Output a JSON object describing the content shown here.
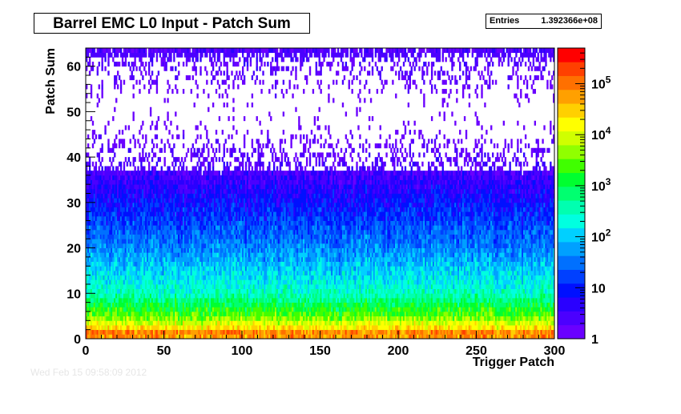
{
  "title": "Barrel EMC L0 Input - Patch Sum",
  "stats": {
    "label": "Entries",
    "value": "1.392366e+08"
  },
  "footer_stamp": "Wed Feb 15 09:58:09 2012",
  "chart_data": {
    "type": "heatmap",
    "title": "Barrel EMC L0 Input - Patch Sum",
    "xlabel": "Trigger Patch",
    "ylabel": "Patch Sum",
    "xlim": [
      0,
      300
    ],
    "ylim": [
      0,
      64
    ],
    "x_ticks": [
      0,
      50,
      100,
      150,
      200,
      250,
      300
    ],
    "y_ticks": [
      0,
      10,
      20,
      30,
      40,
      50,
      60
    ],
    "z_scale": "log",
    "zlim": [
      1,
      500000
    ],
    "z_ticks": [
      {
        "value": 1,
        "label": "1"
      },
      {
        "value": 10,
        "label": "10"
      },
      {
        "value": 100,
        "label": "10",
        "exp": "2"
      },
      {
        "value": 1000,
        "label": "10",
        "exp": "3"
      },
      {
        "value": 10000,
        "label": "10",
        "exp": "4"
      },
      {
        "value": 100000,
        "label": "10",
        "exp": "5"
      }
    ],
    "n_bins_x": 300,
    "n_bins_y": 64,
    "profile": {
      "description_points": [
        {
          "patch_sum": 0,
          "counts": 20000
        },
        {
          "patch_sum": 1,
          "counts": 200000
        },
        {
          "patch_sum": 2,
          "counts": 30000
        },
        {
          "patch_sum": 5,
          "counts": 3000
        },
        {
          "patch_sum": 10,
          "counts": 300
        },
        {
          "patch_sum": 20,
          "counts": 40
        },
        {
          "patch_sum": 30,
          "counts": 8
        },
        {
          "patch_sum": 40,
          "counts": 1.5
        },
        {
          "patch_sum": 50,
          "counts": 0.4
        },
        {
          "patch_sum": 63,
          "counts": 2
        }
      ]
    },
    "palette": [
      "#6a00ff",
      "#4b00ff",
      "#2a00ff",
      "#0010ff",
      "#0040ff",
      "#0070ff",
      "#00a0ff",
      "#00d0ff",
      "#00ffe0",
      "#00ffb0",
      "#00ff70",
      "#00ff30",
      "#40ff00",
      "#90ff00",
      "#d0ff00",
      "#ffff00",
      "#ffd000",
      "#ffa000",
      "#ff7000",
      "#ff4000",
      "#ff0000"
    ],
    "grid": false,
    "legend": "colorbar-right"
  }
}
